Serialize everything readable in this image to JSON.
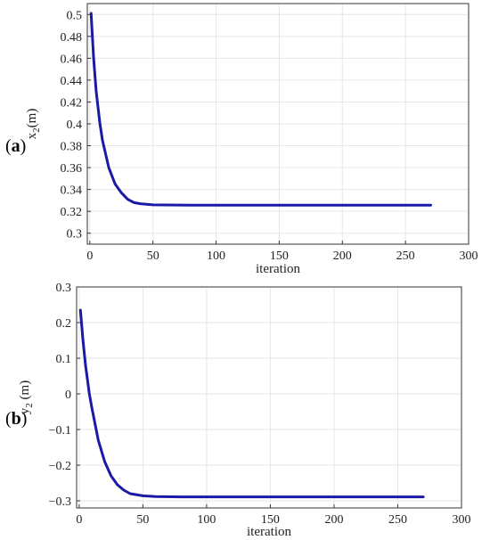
{
  "chart_data": [
    {
      "panel": "(a)",
      "type": "line",
      "xlabel": "iteration",
      "ylabel": "x2(m)",
      "ylabel_main": "x",
      "ylabel_sub": "2",
      "ylabel_unit": "(m)",
      "xlim": [
        -2,
        300
      ],
      "ylim": [
        0.29,
        0.51
      ],
      "xticks": [
        0,
        50,
        100,
        150,
        200,
        250,
        300
      ],
      "yticks": [
        0.3,
        0.32,
        0.34,
        0.36,
        0.38,
        0.4,
        0.42,
        0.44,
        0.46,
        0.48,
        0.5
      ],
      "ytick_labels": [
        "0.3",
        "0.32",
        "0.34",
        "0.36",
        "0.38",
        "0.4",
        "0.42",
        "0.44",
        "0.46",
        "0.48",
        "0.5"
      ],
      "grid": true,
      "color": "#1a1aa6",
      "series": [
        {
          "x": [
            1,
            3,
            5,
            8,
            10,
            15,
            20,
            25,
            30,
            35,
            40,
            50,
            60,
            80,
            100,
            150,
            200,
            250,
            270
          ],
          "y": [
            0.501,
            0.46,
            0.43,
            0.4,
            0.385,
            0.36,
            0.345,
            0.337,
            0.331,
            0.328,
            0.327,
            0.326,
            0.3258,
            0.3256,
            0.3256,
            0.3256,
            0.3256,
            0.3256,
            0.3256
          ]
        }
      ]
    },
    {
      "panel": "(b)",
      "type": "line",
      "xlabel": "iteration",
      "ylabel": "y2 (m)",
      "ylabel_main": "y",
      "ylabel_sub": "2",
      "ylabel_unit": " (m)",
      "xlim": [
        -2,
        300
      ],
      "ylim": [
        -0.32,
        0.3
      ],
      "xticks": [
        0,
        50,
        100,
        150,
        200,
        250,
        300
      ],
      "yticks": [
        -0.3,
        -0.2,
        -0.1,
        0,
        0.1,
        0.2,
        0.3
      ],
      "ytick_labels": [
        "−0.3",
        "−0.2",
        "−0.1",
        "0",
        "0.1",
        "0.2",
        "0.3"
      ],
      "grid": true,
      "color": "#1a1aa6",
      "series": [
        {
          "x": [
            1,
            3,
            5,
            8,
            10,
            15,
            20,
            25,
            30,
            35,
            40,
            50,
            60,
            80,
            100,
            150,
            200,
            250,
            270
          ],
          "y": [
            0.235,
            0.15,
            0.08,
            0.0,
            -0.04,
            -0.13,
            -0.19,
            -0.23,
            -0.255,
            -0.27,
            -0.28,
            -0.286,
            -0.288,
            -0.289,
            -0.289,
            -0.289,
            -0.289,
            -0.289,
            -0.289
          ]
        }
      ]
    }
  ]
}
